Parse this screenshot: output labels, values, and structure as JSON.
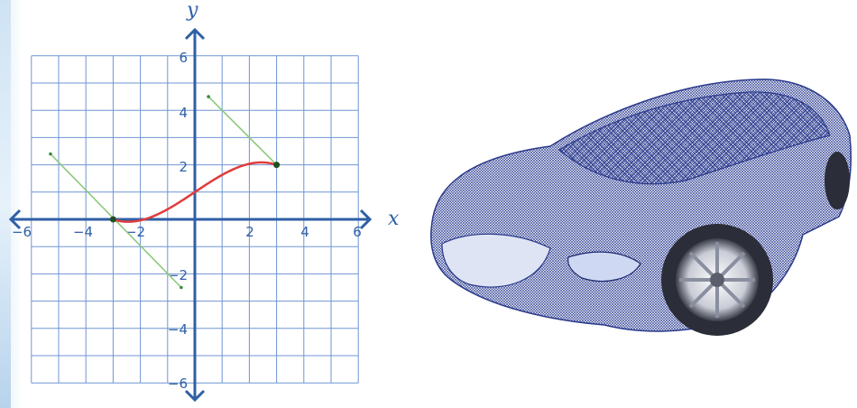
{
  "graph": {
    "axis_labels": {
      "x": "x",
      "y": "y"
    },
    "x_ticks": [
      "−6",
      "−4",
      "−2",
      "2",
      "4",
      "6"
    ],
    "y_ticks": [
      "6",
      "4",
      "2",
      "−2",
      "−4",
      "−6"
    ],
    "colors": {
      "grid": "#6f95d3",
      "axis": "#2f5fa6",
      "curve": "#e03c3c",
      "tangent": "#8cc97c",
      "point": "#1f4f1f"
    },
    "curve": {
      "x_start": -3,
      "x_end": 3
    },
    "points": [
      {
        "x": -3,
        "y": 0
      },
      {
        "x": 3,
        "y": 2
      }
    ],
    "tangents": [
      {
        "from": [
          -5.3,
          2.4
        ],
        "to": [
          -0.5,
          -2.5
        ]
      },
      {
        "from": [
          0.5,
          4.5
        ],
        "to": [
          3,
          2
        ]
      }
    ]
  },
  "car": {
    "description_icon": "wireframe-sports-car-icon",
    "colors": {
      "mesh": "#2b3a8c",
      "body": "#eef1fa",
      "wheel": "#c9ccd6",
      "rim": "#8a8fa0"
    }
  }
}
